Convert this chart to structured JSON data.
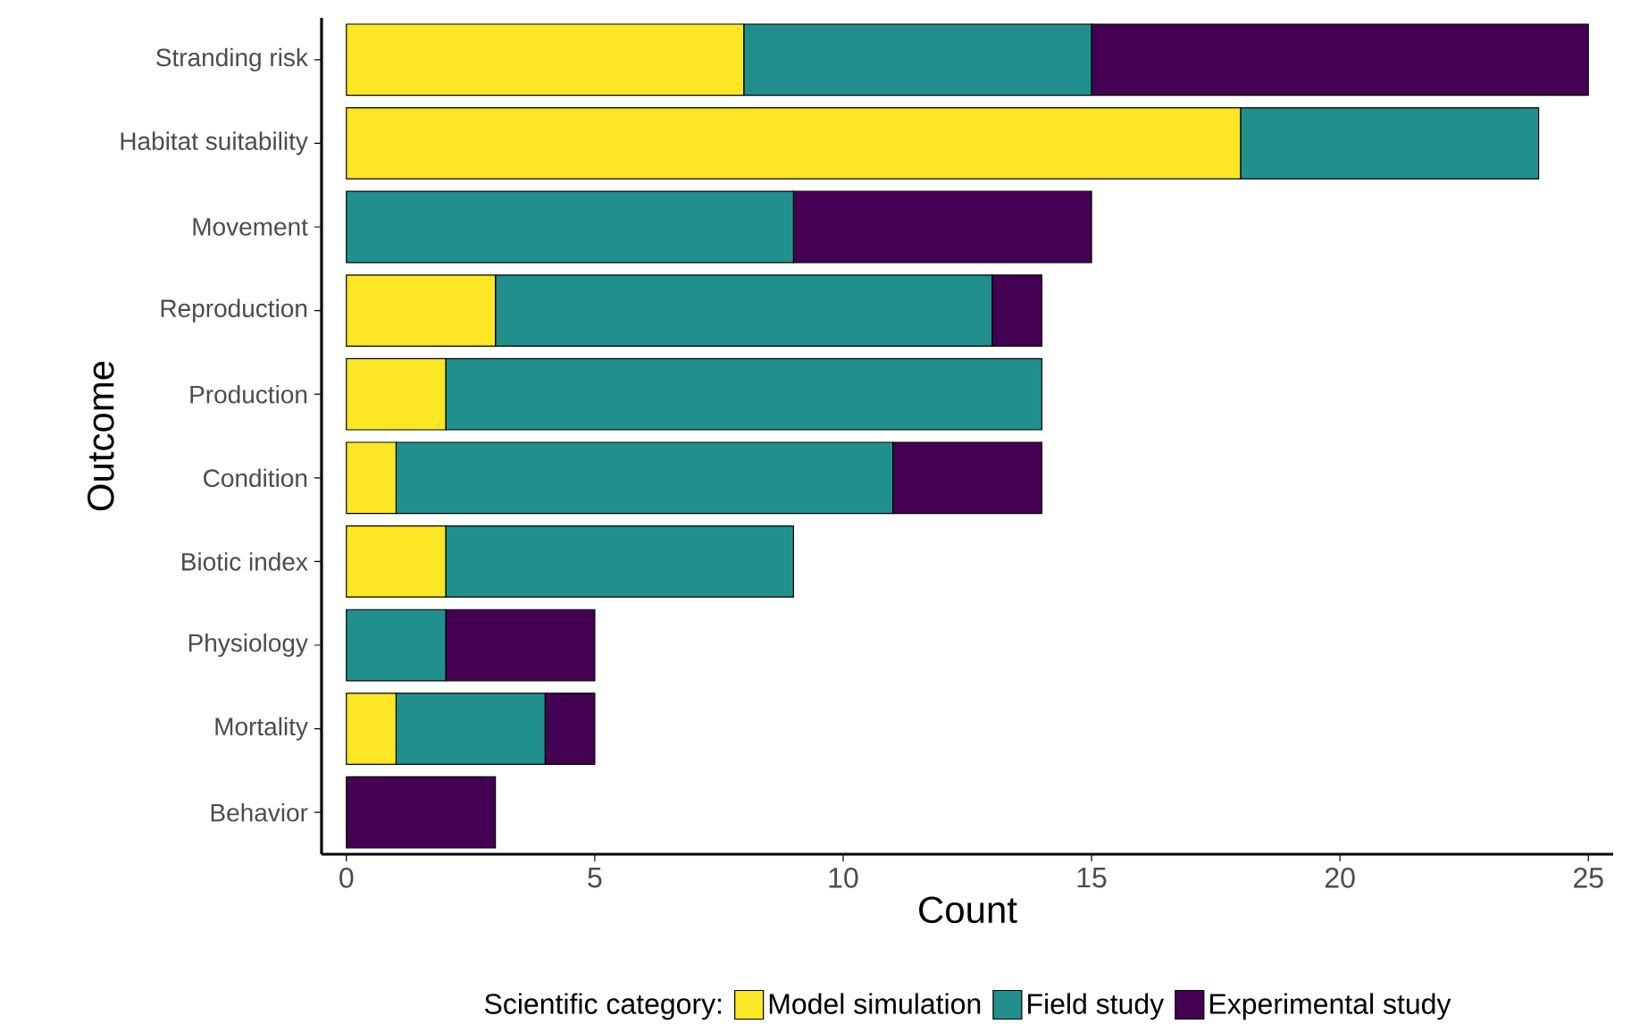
{
  "chart_data": {
    "type": "bar",
    "orientation": "horizontal",
    "stacked": true,
    "xlabel": "Count",
    "ylabel": "Outcome",
    "legend_title": "Scientific category:",
    "legend": "bottom",
    "grid": false,
    "categories": [
      "Stranding risk",
      "Habitat suitability",
      "Movement",
      "Reproduction",
      "Production",
      "Condition",
      "Biotic index",
      "Physiology",
      "Mortality",
      "Behavior"
    ],
    "series": [
      {
        "name": "Model simulation",
        "color": "#fde725",
        "values": [
          8,
          18,
          0,
          3,
          2,
          1,
          2,
          0,
          1,
          0
        ]
      },
      {
        "name": "Field study",
        "color": "#21908c",
        "values": [
          7,
          6,
          9,
          10,
          12,
          10,
          7,
          2,
          3,
          0
        ]
      },
      {
        "name": "Experimental study",
        "color": "#440154",
        "values": [
          10,
          0,
          6,
          1,
          0,
          3,
          0,
          3,
          1,
          3
        ]
      }
    ],
    "xlim": [
      -0.5,
      25.5
    ],
    "xticks": [
      0,
      5,
      10,
      15,
      20,
      25
    ]
  }
}
